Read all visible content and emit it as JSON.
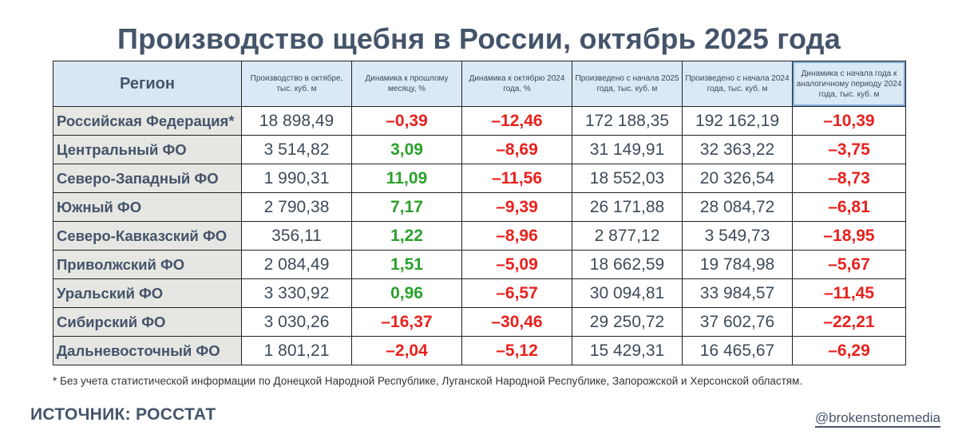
{
  "title": "Производство щебня в России, октябрь 2025 года",
  "chart_data": {
    "type": "table",
    "title": "Производство щебня в России, октябрь 2025 года",
    "columns": [
      "Регион",
      "Производство в октябре, тыс. куб. м",
      "Динамика к прошлому месяцу, %",
      "Динамика к октябрю 2024 года, %",
      "Произведено с начала 2025 года, тыс. куб. м",
      "Произведено с начала 2024 года, тыс. куб. м",
      "Динамика с начала года к аналогичному периоду 2024 года, тыс. куб. м"
    ],
    "rows": [
      {
        "region": "Российская Федерация*",
        "oct": "18 898,49",
        "mom": "–0,39",
        "yoy": "–12,46",
        "ytd2025": "172 188,35",
        "ytd2024": "192 162,19",
        "ytd_change": "–10,39"
      },
      {
        "region": "Центральный ФО",
        "oct": "3 514,82",
        "mom": "3,09",
        "yoy": "–8,69",
        "ytd2025": "31 149,91",
        "ytd2024": "32 363,22",
        "ytd_change": "–3,75"
      },
      {
        "region": "Северо-Западный ФО",
        "oct": "1 990,31",
        "mom": "11,09",
        "yoy": "–11,56",
        "ytd2025": "18 552,03",
        "ytd2024": "20 326,54",
        "ytd_change": "–8,73"
      },
      {
        "region": "Южный ФО",
        "oct": "2 790,38",
        "mom": "7,17",
        "yoy": "–9,39",
        "ytd2025": "26 171,88",
        "ytd2024": "28 084,72",
        "ytd_change": "–6,81"
      },
      {
        "region": "Северо-Кавказский ФО",
        "oct": "356,11",
        "mom": "1,22",
        "yoy": "–8,96",
        "ytd2025": "2 877,12",
        "ytd2024": "3 549,73",
        "ytd_change": "–18,95"
      },
      {
        "region": "Приволжский ФО",
        "oct": "2 084,49",
        "mom": "1,51",
        "yoy": "–5,09",
        "ytd2025": "18 662,59",
        "ytd2024": "19 784,98",
        "ytd_change": "–5,67"
      },
      {
        "region": "Уральский ФО",
        "oct": "3 330,92",
        "mom": "0,96",
        "yoy": "–6,57",
        "ytd2025": "30 094,81",
        "ytd2024": "33 984,57",
        "ytd_change": "–11,45"
      },
      {
        "region": "Сибирский ФО",
        "oct": "3 030,26",
        "mom": "–16,37",
        "yoy": "–30,46",
        "ytd2025": "29 250,72",
        "ytd2024": "37 602,76",
        "ytd_change": "–22,21"
      },
      {
        "region": "Дальневосточный ФО",
        "oct": "1 801,21",
        "mom": "–2,04",
        "yoy": "–5,12",
        "ytd2025": "15 429,31",
        "ytd2024": "16 465,67",
        "ytd_change": "–6,29"
      }
    ],
    "colors": {
      "negative": "#e8211d",
      "positive": "#2ba02b",
      "header_bg": "#dbe8f5",
      "region_bg": "#e6e6e2"
    }
  },
  "footnote": "* Без учета статистической информации по Донецкой Народной Республике, Луганской Народной Республике, Запорожской и Херсонской областям.",
  "source": "ИСТОЧНИК: РОССТАТ",
  "handle": "@brokenstonemedia"
}
